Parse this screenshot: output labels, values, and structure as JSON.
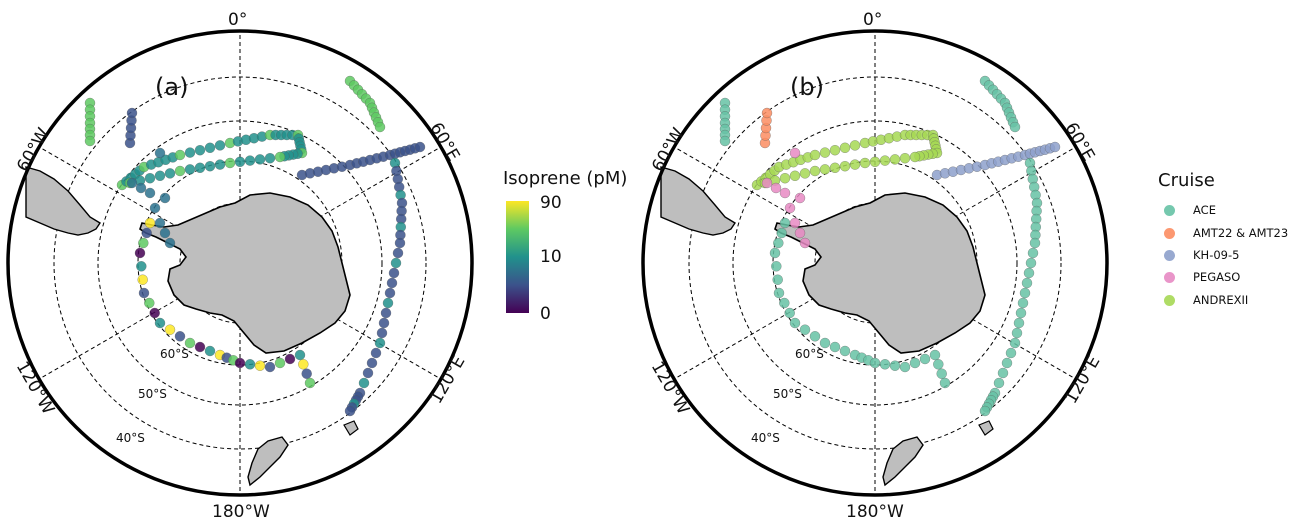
{
  "panel_a": {
    "label": "(a)",
    "lon_labels": {
      "top": "0°",
      "upper_left": "60°W",
      "upper_right": "60°E",
      "lower_left": "120°W",
      "lower_right": "120°E",
      "bottom": "180°W"
    },
    "lat_labels": {
      "s60": "60°S",
      "s50": "50°S",
      "s40": "40°S"
    }
  },
  "panel_b": {
    "label": "(b)",
    "lon_labels": {
      "top": "0°",
      "upper_left": "60°W",
      "upper_right": "60°E",
      "lower_left": "120°W",
      "lower_right": "120°E",
      "bottom": "180°W"
    },
    "lat_labels": {
      "s60": "60°S",
      "s50": "50°S",
      "s40": "40°S"
    }
  },
  "colorbar": {
    "title": "Isoprene (pM)",
    "ticks": [
      "90",
      "10",
      "0"
    ],
    "colors": [
      "#fde725",
      "#5ec962",
      "#21918c",
      "#3b528b",
      "#440154"
    ]
  },
  "legend": {
    "title": "Cruise",
    "items": [
      {
        "label": "ACE",
        "color": "#66c2a5"
      },
      {
        "label": "AMT22 & AMT23",
        "color": "#fc8d62"
      },
      {
        "label": "KH-09-5",
        "color": "#8da0cb"
      },
      {
        "label": "PEGASO",
        "color": "#e78ac3"
      },
      {
        "label": "ANDREXII",
        "color": "#a6d854"
      }
    ]
  },
  "colors": {
    "land": "#bebebe",
    "coast": "#000000",
    "frame": "#000000",
    "grid": "#000000"
  }
}
